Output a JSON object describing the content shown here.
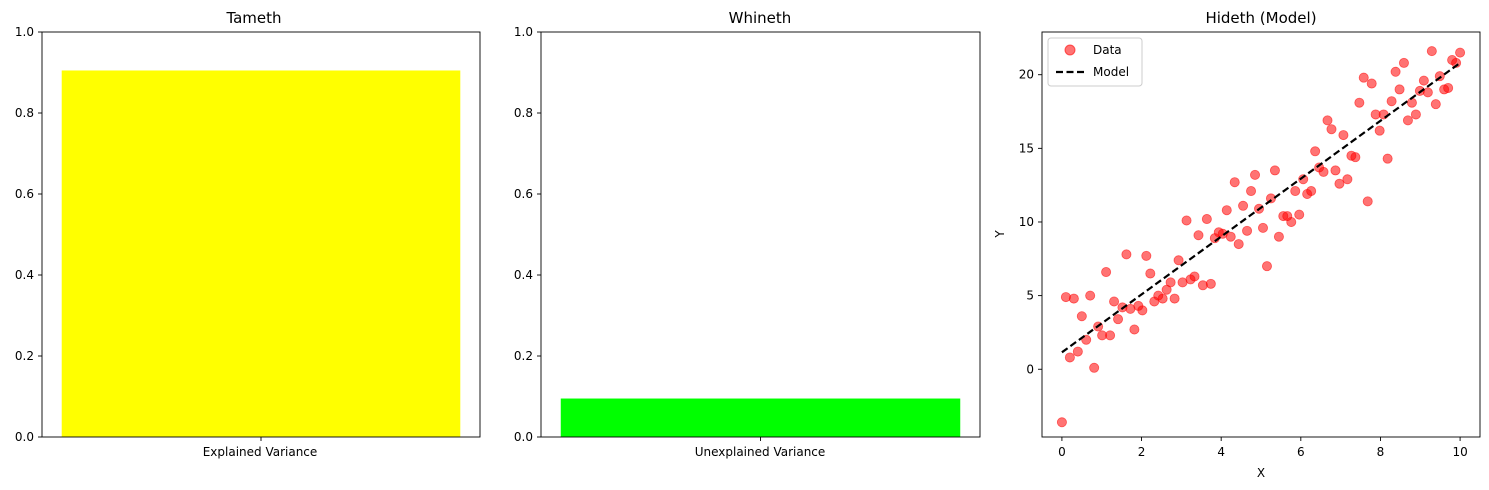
{
  "colors": {
    "explained": "#ffff00",
    "unexplained": "#00ff00",
    "scatter": "#ff0000",
    "model_line": "#000000"
  },
  "chart_data": [
    {
      "type": "bar",
      "title": "Tameth",
      "categories": [
        "Explained Variance"
      ],
      "values": [
        0.905
      ],
      "ylim": [
        0,
        1
      ],
      "yticks": [
        "0.0",
        "0.2",
        "0.4",
        "0.6",
        "0.8",
        "1.0"
      ],
      "xlabel": "",
      "ylabel": "",
      "color": "#ffff00"
    },
    {
      "type": "bar",
      "title": "Whineth",
      "categories": [
        "Unexplained Variance"
      ],
      "values": [
        0.095
      ],
      "ylim": [
        0,
        1
      ],
      "yticks": [
        "0.0",
        "0.2",
        "0.4",
        "0.6",
        "0.8",
        "1.0"
      ],
      "xlabel": "",
      "ylabel": "",
      "color": "#00ff00"
    },
    {
      "type": "scatter",
      "title": "Hideth (Model)",
      "xlabel": "X",
      "ylabel": "Y",
      "xlim": [
        -0.5,
        10.5
      ],
      "ylim": [
        -4.6,
        22.9
      ],
      "xticks": [
        "0",
        "2",
        "4",
        "6",
        "8",
        "10"
      ],
      "yticks": [
        "0",
        "5",
        "10",
        "15",
        "20"
      ],
      "legend": {
        "position": "top-left",
        "entries": [
          "Data",
          "Model"
        ]
      },
      "series": [
        {
          "name": "Data",
          "kind": "scatter",
          "color": "#ff0000",
          "x": [
            0.0,
            0.1,
            0.2,
            0.3,
            0.4,
            0.5,
            0.61,
            0.71,
            0.81,
            0.91,
            1.01,
            1.11,
            1.21,
            1.31,
            1.41,
            1.52,
            1.62,
            1.72,
            1.82,
            1.92,
            2.02,
            2.12,
            2.22,
            2.32,
            2.42,
            2.53,
            2.63,
            2.73,
            2.83,
            2.93,
            3.03,
            3.13,
            3.23,
            3.33,
            3.43,
            3.54,
            3.64,
            3.74,
            3.84,
            3.94,
            4.04,
            4.14,
            4.24,
            4.34,
            4.44,
            4.55,
            4.65,
            4.75,
            4.85,
            4.95,
            5.05,
            5.15,
            5.25,
            5.35,
            5.45,
            5.56,
            5.66,
            5.76,
            5.86,
            5.96,
            6.06,
            6.16,
            6.26,
            6.36,
            6.46,
            6.57,
            6.67,
            6.77,
            6.87,
            6.97,
            7.07,
            7.17,
            7.27,
            7.37,
            7.47,
            7.58,
            7.68,
            7.78,
            7.88,
            7.98,
            8.08,
            8.18,
            8.28,
            8.38,
            8.48,
            8.59,
            8.69,
            8.79,
            8.89,
            8.99,
            9.09,
            9.19,
            9.29,
            9.39,
            9.49,
            9.6,
            9.7,
            9.8,
            9.9,
            10.0
          ],
          "y": [
            -3.6,
            4.9,
            0.8,
            4.8,
            1.2,
            3.6,
            2.0,
            5.0,
            0.1,
            2.9,
            2.3,
            6.6,
            2.3,
            4.6,
            3.4,
            4.2,
            7.8,
            4.1,
            2.7,
            4.3,
            4.0,
            7.7,
            6.5,
            4.6,
            5.0,
            4.8,
            5.4,
            5.9,
            4.8,
            7.4,
            5.9,
            10.1,
            6.1,
            6.3,
            9.1,
            5.7,
            10.2,
            5.8,
            8.9,
            9.3,
            9.2,
            10.8,
            9.0,
            12.7,
            8.5,
            11.1,
            9.4,
            12.1,
            13.2,
            10.9,
            9.6,
            7.0,
            11.6,
            13.5,
            9.0,
            10.4,
            10.4,
            10.0,
            12.1,
            10.5,
            12.9,
            11.9,
            12.1,
            14.8,
            13.7,
            13.4,
            16.9,
            16.3,
            13.5,
            12.6,
            15.9,
            12.9,
            14.5,
            14.4,
            18.1,
            19.8,
            11.4,
            19.4,
            17.3,
            16.2,
            17.3,
            14.3,
            18.2,
            20.2,
            19.0,
            20.8,
            16.9,
            18.1,
            17.3,
            18.9,
            19.6,
            18.8,
            21.6,
            18.0,
            19.9,
            19.0,
            19.1,
            21.0,
            20.8,
            21.5
          ]
        },
        {
          "name": "Model",
          "kind": "line",
          "style": "dashed",
          "color": "#000000",
          "x": [
            0,
            10
          ],
          "y": [
            1.15,
            20.8
          ]
        }
      ]
    }
  ]
}
